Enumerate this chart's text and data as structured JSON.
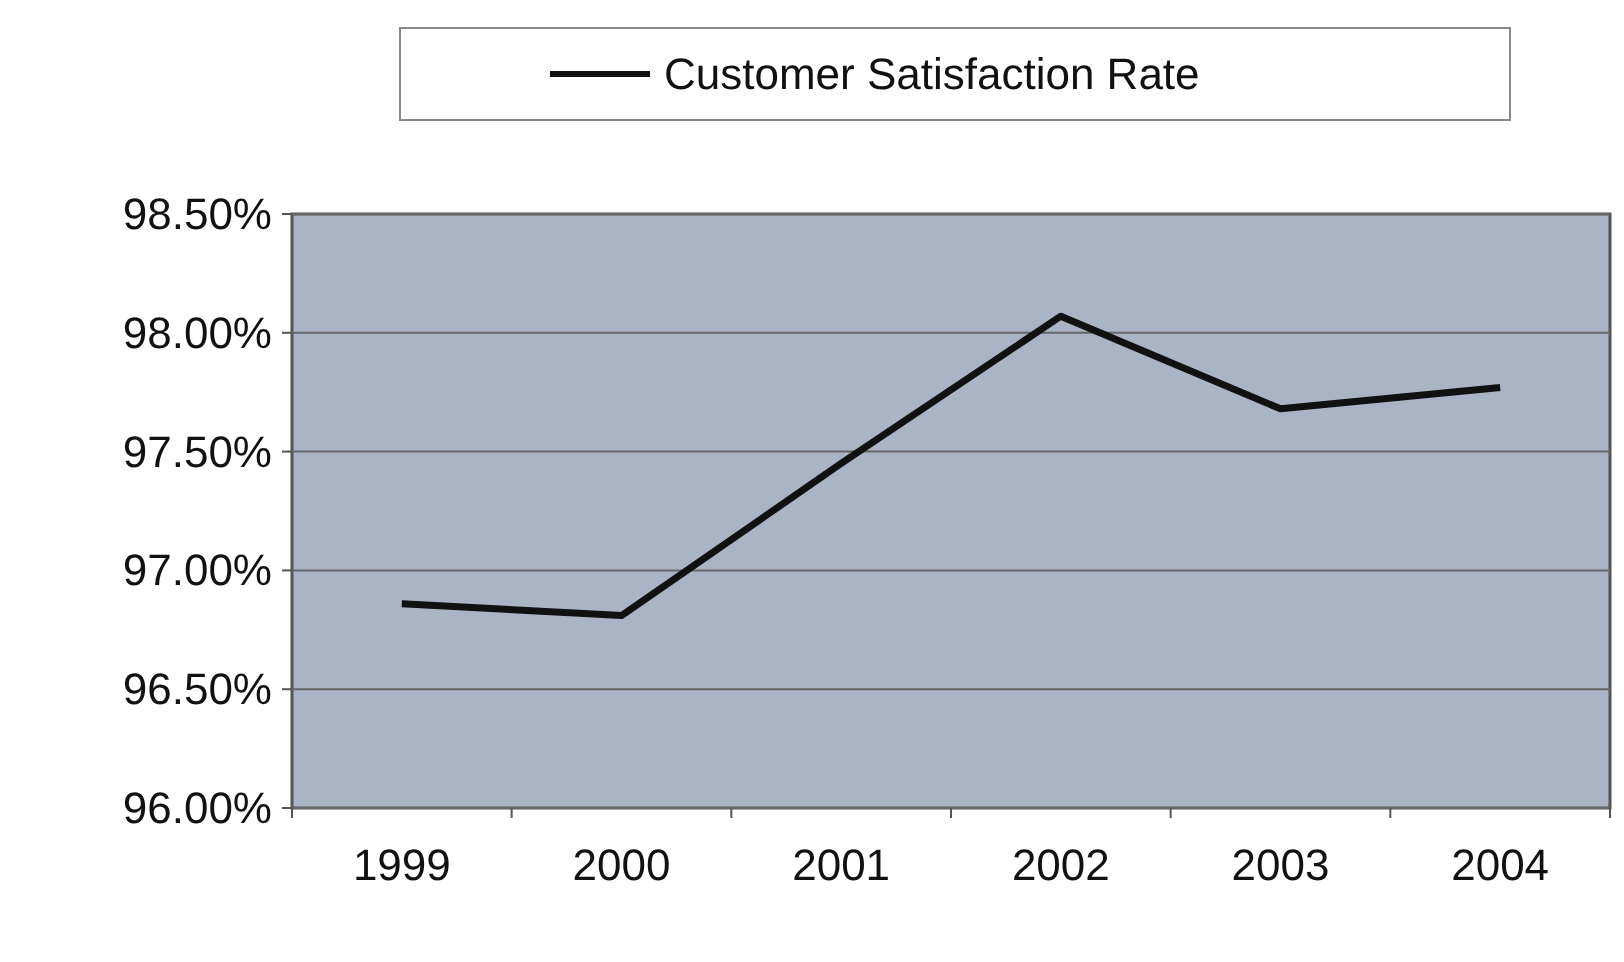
{
  "chart_data": {
    "type": "line",
    "categories": [
      "1999",
      "2000",
      "2001",
      "2002",
      "2003",
      "2004"
    ],
    "series": [
      {
        "name": "Customer Satisfaction Rate",
        "color": "#111111",
        "values": [
          96.86,
          96.81,
          97.45,
          98.07,
          97.68,
          97.77
        ]
      }
    ],
    "ylim": [
      96,
      98.5
    ],
    "yticks": [
      {
        "value": 96,
        "label": "96.00%"
      },
      {
        "value": 96.5,
        "label": "96.50%"
      },
      {
        "value": 97,
        "label": "97.00%"
      },
      {
        "value": 97.5,
        "label": "97.50%"
      },
      {
        "value": 98,
        "label": "98.00%"
      },
      {
        "value": 98.5,
        "label": "98.50%"
      }
    ],
    "grid": "y",
    "legend": "top",
    "marker": "none",
    "line_style": "solid"
  }
}
